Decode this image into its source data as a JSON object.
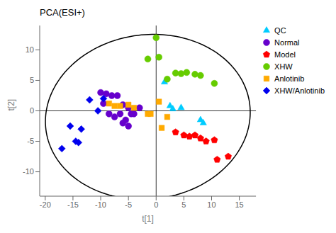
{
  "chart_data": {
    "type": "scatter",
    "title": "PCA(ESI+)",
    "xlabel": "t[1]",
    "ylabel": "t[2]",
    "xlim": [
      -21,
      18
    ],
    "ylim": [
      -14,
      14
    ],
    "xticks": [
      -20,
      -15,
      -10,
      -5,
      0,
      5,
      10,
      15
    ],
    "yticks": [
      -10,
      -5,
      0,
      5,
      10
    ],
    "grid": false,
    "legend": "upper right",
    "series": [
      {
        "name": "QC",
        "color": "#00CCFF",
        "marker": "triangle",
        "x": [
          1.5,
          2.5,
          3.0,
          4.5,
          8.0,
          8.5
        ],
        "y": [
          4.7,
          0.8,
          0.3,
          0.5,
          -1.5,
          -2.0
        ]
      },
      {
        "name": "Normal",
        "color": "#6600CC",
        "marker": "circle",
        "x": [
          -10,
          -9,
          -9.5,
          -8.5,
          -7.5,
          -6.5,
          -6,
          -5.5,
          -5,
          -4.5,
          -4,
          -3,
          -8,
          -7,
          -6,
          -5
        ],
        "y": [
          3.0,
          2.8,
          1.2,
          -0.5,
          -1.0,
          -0.5,
          -2.0,
          -1.5,
          -2.5,
          -0.5,
          -0.5,
          0.5,
          2.5,
          2.5,
          1.0,
          0.5
        ]
      },
      {
        "name": "Model",
        "color": "#FF0000",
        "marker": "pentagon",
        "x": [
          3.5,
          5.0,
          6.0,
          7.0,
          8.0,
          9.0,
          10.5,
          11.0,
          13.0
        ],
        "y": [
          -3.5,
          -4.0,
          -4.2,
          -4.0,
          -4.5,
          -5.0,
          -4.8,
          -8.0,
          -7.5
        ]
      },
      {
        "name": "XHW",
        "color": "#66CC00",
        "marker": "circle",
        "x": [
          -1.5,
          0.0,
          0.5,
          2.0,
          3.5,
          4.5,
          5.5,
          7.0,
          8.0,
          10.5
        ],
        "y": [
          8.5,
          12.0,
          8.8,
          5.2,
          6.2,
          6.1,
          6.3,
          6.0,
          5.8,
          4.5
        ]
      },
      {
        "name": "Anlotinib",
        "color": "#FFAA00",
        "marker": "square",
        "x": [
          -8.5,
          -7.5,
          -6.5,
          -5,
          -4,
          -1.5,
          0.5,
          1.0,
          2.0,
          -1.0
        ],
        "y": [
          1.2,
          0.8,
          0.8,
          1.0,
          0.5,
          -0.5,
          1.5,
          -2.8,
          -1.0,
          -0.5
        ]
      },
      {
        "name": "XHW/Anlotinib",
        "color": "#0000EE",
        "marker": "diamond",
        "x": [
          -17.0,
          -15.5,
          -14.5,
          -14.0,
          -13.5,
          -12.0,
          -10.5,
          -9.5
        ],
        "y": [
          -6.2,
          -2.5,
          -5.0,
          -5.2,
          -3.0,
          1.8,
          0.0,
          2.0
        ]
      }
    ],
    "ellipse": {
      "cx": -1.5,
      "cy": -1.0,
      "width": 37,
      "height": 27,
      "angle": 5
    },
    "hlines": [
      0
    ],
    "vlines": [
      0
    ]
  }
}
